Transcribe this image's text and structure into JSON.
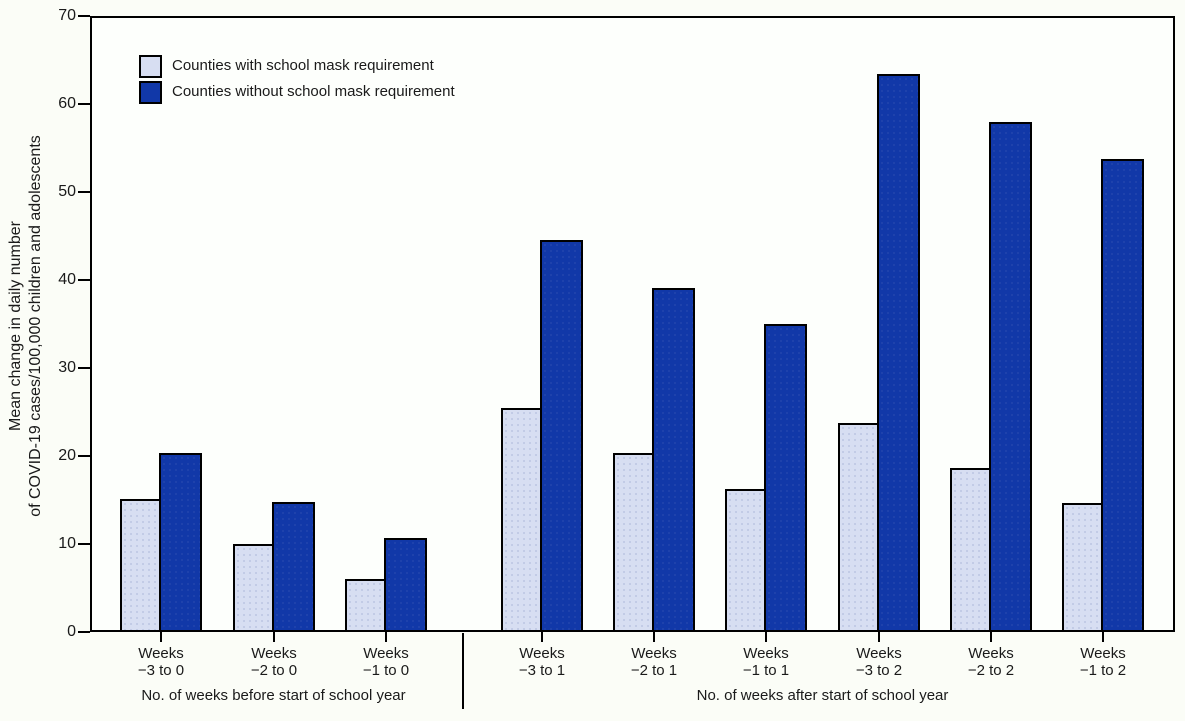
{
  "chart_data": {
    "type": "bar",
    "title": "",
    "ylabel_lines": [
      "Mean change in daily number",
      "of COVID-19 cases/100,000 children and adolescents"
    ],
    "y_axis": {
      "min": 0,
      "max": 70,
      "tick_step": 10,
      "ticks": [
        0,
        10,
        20,
        30,
        40,
        50,
        60,
        70
      ]
    },
    "grid": "off",
    "legend_position": "top-left-inside",
    "categories": [
      {
        "line1": "Weeks",
        "line2": "−3 to 0"
      },
      {
        "line1": "Weeks",
        "line2": "−2 to 0"
      },
      {
        "line1": "Weeks",
        "line2": "−1 to 0"
      },
      {
        "line1": "Weeks",
        "line2": "−3 to 1"
      },
      {
        "line1": "Weeks",
        "line2": "−2 to 1"
      },
      {
        "line1": "Weeks",
        "line2": "−1 to 1"
      },
      {
        "line1": "Weeks",
        "line2": "−3 to 2"
      },
      {
        "line1": "Weeks",
        "line2": "−2 to 2"
      },
      {
        "line1": "Weeks",
        "line2": "−1 to 2"
      }
    ],
    "series": [
      {
        "name": "Counties with school mask requirement",
        "color": "#d7def2",
        "values": [
          15.1,
          10.0,
          6.0,
          25.4,
          20.3,
          16.3,
          23.8,
          18.6,
          14.7
        ]
      },
      {
        "name": "Counties without school mask requirement",
        "color": "#1138a8",
        "values": [
          20.3,
          14.8,
          10.7,
          44.5,
          39.1,
          35.0,
          63.4,
          57.9,
          53.7
        ]
      }
    ],
    "sections": [
      {
        "label": "No. of weeks before start of school year",
        "category_indexes": [
          0,
          1,
          2
        ]
      },
      {
        "label": "No. of weeks after start of school year",
        "category_indexes": [
          3,
          4,
          5,
          6,
          7,
          8
        ]
      }
    ]
  },
  "colors": {
    "axis": "#000000",
    "text": "#1a1a1a",
    "background": "#fbfdf7"
  }
}
